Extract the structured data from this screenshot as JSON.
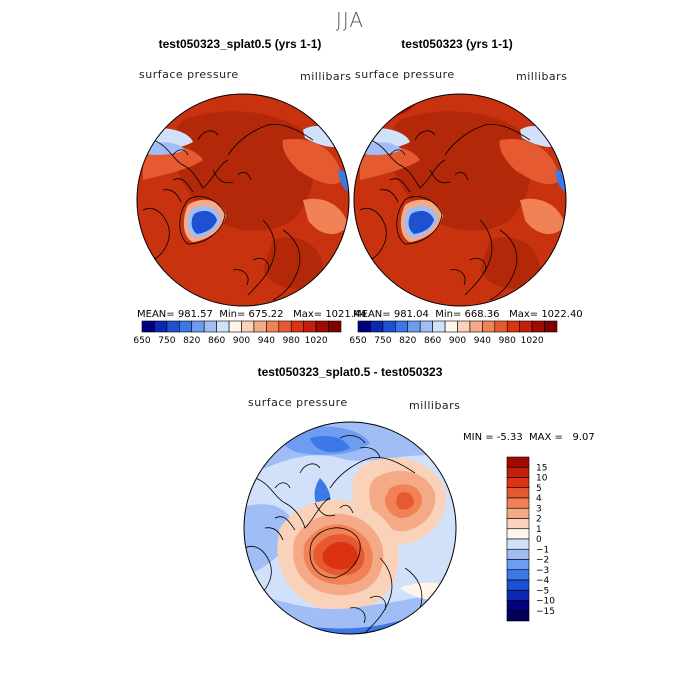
{
  "season": "JJA",
  "panels": [
    {
      "title": "test050323_splat0.5 (yrs 1-1)",
      "variable": "surface pressure",
      "units": "millibars",
      "stats": {
        "mean_label": "MEAN=",
        "mean": "981.57",
        "min_label": "Min=",
        "min": "675.22",
        "max_label": "Max=",
        "max": "1021.44"
      }
    },
    {
      "title": "test050323 (yrs 1-1)",
      "variable": "surface pressure",
      "units": "millibars",
      "stats": {
        "mean_label": "MEAN=",
        "mean": "981.04",
        "min_label": "Min=",
        "min": "668.36",
        "max_label": "Max=",
        "max": "1022.40"
      }
    }
  ],
  "abs_colorbar": {
    "tick_labels": [
      "650",
      "750",
      "820",
      "860",
      "900",
      "940",
      "980",
      "1020"
    ],
    "colors": [
      "#00007f",
      "#0a28b4",
      "#1e50d2",
      "#3c78e6",
      "#6e9cf0",
      "#a0bef5",
      "#d2e1fa",
      "#fff5eb",
      "#fad2b9",
      "#f5aa87",
      "#f08255",
      "#e65a32",
      "#dc3214",
      "#c31e0a",
      "#a00a00",
      "#7f0000"
    ]
  },
  "diff_panel": {
    "title": "test050323_splat0.5 - test050323",
    "variable": "surface pressure",
    "units": "millibars",
    "min_label": "MIN =",
    "min": "-5.33",
    "max_label": "MAX =",
    "max": "9.07"
  },
  "diff_colorbar": {
    "tick_labels": [
      "15",
      "10",
      "5",
      "4",
      "3",
      "2",
      "1",
      "0",
      "−1",
      "−2",
      "−3",
      "−4",
      "−5",
      "−10",
      "−15"
    ],
    "colors": [
      "#a00a00",
      "#c31e0a",
      "#dc3214",
      "#e65a32",
      "#f08255",
      "#f5aa87",
      "#fad2b9",
      "#fff5eb",
      "#d2e1fa",
      "#a0bef5",
      "#6e9cf0",
      "#3c78e6",
      "#1e50d2",
      "#0a28b4",
      "#00007f",
      "#00005a"
    ]
  }
}
